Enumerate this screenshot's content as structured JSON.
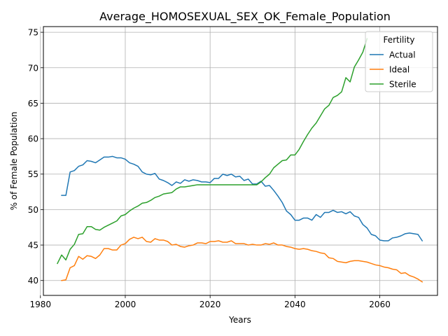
{
  "chart_data": {
    "type": "line",
    "title": "Average_HOMOSEXUAL_SEX_OK_Female_Population",
    "xlabel": "Years",
    "ylabel": "% of Female Population",
    "xlim": [
      1980.7,
      2073.6
    ],
    "ylim": [
      37.9,
      75.8
    ],
    "xticks": [
      1980,
      2000,
      2020,
      2040,
      2060
    ],
    "yticks": [
      40,
      45,
      50,
      55,
      60,
      65,
      70,
      75
    ],
    "grid": true,
    "legend": {
      "title": "Fertility",
      "placement": "top-right"
    },
    "series": [
      {
        "name": "Actual",
        "color": "#1f77b4",
        "points": [
          [
            1985,
            52.0
          ],
          [
            1986,
            52.0
          ],
          [
            1987,
            55.3
          ],
          [
            1988,
            55.5
          ],
          [
            1989,
            56.1
          ],
          [
            1990,
            56.3
          ],
          [
            1991,
            56.9
          ],
          [
            1992,
            56.8
          ],
          [
            1993,
            56.6
          ],
          [
            1994,
            57.0
          ],
          [
            1995,
            57.4
          ],
          [
            1996,
            57.4
          ],
          [
            1997,
            57.5
          ],
          [
            1998,
            57.3
          ],
          [
            1999,
            57.3
          ],
          [
            2000,
            57.1
          ],
          [
            2001,
            56.6
          ],
          [
            2002,
            56.4
          ],
          [
            2003,
            56.1
          ],
          [
            2004,
            55.3
          ],
          [
            2005,
            55.0
          ],
          [
            2006,
            54.9
          ],
          [
            2007,
            55.1
          ],
          [
            2008,
            54.3
          ],
          [
            2009,
            54.1
          ],
          [
            2010,
            53.8
          ],
          [
            2011,
            53.4
          ],
          [
            2012,
            53.9
          ],
          [
            2013,
            53.7
          ],
          [
            2014,
            54.2
          ],
          [
            2015,
            54.0
          ],
          [
            2016,
            54.2
          ],
          [
            2017,
            54.1
          ],
          [
            2018,
            53.9
          ],
          [
            2019,
            53.9
          ],
          [
            2020,
            53.8
          ],
          [
            2021,
            54.4
          ],
          [
            2022,
            54.4
          ],
          [
            2023,
            55.0
          ],
          [
            2024,
            54.8
          ],
          [
            2025,
            55.0
          ],
          [
            2026,
            54.6
          ],
          [
            2027,
            54.7
          ],
          [
            2028,
            54.1
          ],
          [
            2029,
            54.3
          ],
          [
            2030,
            53.6
          ],
          [
            2031,
            53.6
          ],
          [
            2032,
            54.0
          ],
          [
            2033,
            53.3
          ],
          [
            2034,
            53.4
          ],
          [
            2035,
            52.7
          ],
          [
            2036,
            51.9
          ],
          [
            2037,
            51.0
          ],
          [
            2038,
            49.8
          ],
          [
            2039,
            49.3
          ],
          [
            2040,
            48.5
          ],
          [
            2041,
            48.5
          ],
          [
            2042,
            48.8
          ],
          [
            2043,
            48.8
          ],
          [
            2044,
            48.5
          ],
          [
            2045,
            49.3
          ],
          [
            2046,
            48.9
          ],
          [
            2047,
            49.6
          ],
          [
            2048,
            49.6
          ],
          [
            2049,
            49.9
          ],
          [
            2050,
            49.6
          ],
          [
            2051,
            49.7
          ],
          [
            2052,
            49.4
          ],
          [
            2053,
            49.7
          ],
          [
            2054,
            49.1
          ],
          [
            2055,
            48.9
          ],
          [
            2056,
            47.9
          ],
          [
            2057,
            47.4
          ],
          [
            2058,
            46.5
          ],
          [
            2059,
            46.3
          ],
          [
            2060,
            45.7
          ],
          [
            2061,
            45.6
          ],
          [
            2062,
            45.6
          ],
          [
            2063,
            46.0
          ],
          [
            2064,
            46.1
          ],
          [
            2065,
            46.3
          ],
          [
            2066,
            46.6
          ],
          [
            2067,
            46.7
          ],
          [
            2068,
            46.6
          ],
          [
            2069,
            46.5
          ],
          [
            2070,
            45.6
          ]
        ]
      },
      {
        "name": "Ideal",
        "color": "#ff7f0e",
        "points": [
          [
            1985,
            40.0
          ],
          [
            1986,
            40.1
          ],
          [
            1987,
            41.8
          ],
          [
            1988,
            42.1
          ],
          [
            1989,
            43.4
          ],
          [
            1990,
            43.0
          ],
          [
            1991,
            43.5
          ],
          [
            1992,
            43.4
          ],
          [
            1993,
            43.1
          ],
          [
            1994,
            43.6
          ],
          [
            1995,
            44.5
          ],
          [
            1996,
            44.5
          ],
          [
            1997,
            44.3
          ],
          [
            1998,
            44.3
          ],
          [
            1999,
            45.0
          ],
          [
            2000,
            45.2
          ],
          [
            2001,
            45.8
          ],
          [
            2002,
            46.1
          ],
          [
            2003,
            45.9
          ],
          [
            2004,
            46.1
          ],
          [
            2005,
            45.5
          ],
          [
            2006,
            45.4
          ],
          [
            2007,
            45.9
          ],
          [
            2008,
            45.7
          ],
          [
            2009,
            45.7
          ],
          [
            2010,
            45.5
          ],
          [
            2011,
            45.0
          ],
          [
            2012,
            45.1
          ],
          [
            2013,
            44.8
          ],
          [
            2014,
            44.7
          ],
          [
            2015,
            44.9
          ],
          [
            2016,
            45.0
          ],
          [
            2017,
            45.3
          ],
          [
            2018,
            45.3
          ],
          [
            2019,
            45.2
          ],
          [
            2020,
            45.5
          ],
          [
            2021,
            45.5
          ],
          [
            2022,
            45.6
          ],
          [
            2023,
            45.4
          ],
          [
            2024,
            45.4
          ],
          [
            2025,
            45.6
          ],
          [
            2026,
            45.2
          ],
          [
            2027,
            45.2
          ],
          [
            2028,
            45.2
          ],
          [
            2029,
            45.0
          ],
          [
            2030,
            45.1
          ],
          [
            2031,
            45.0
          ],
          [
            2032,
            45.0
          ],
          [
            2033,
            45.2
          ],
          [
            2034,
            45.1
          ],
          [
            2035,
            45.3
          ],
          [
            2036,
            45.0
          ],
          [
            2037,
            45.0
          ],
          [
            2038,
            44.8
          ],
          [
            2039,
            44.7
          ],
          [
            2040,
            44.5
          ],
          [
            2041,
            44.4
          ],
          [
            2042,
            44.5
          ],
          [
            2043,
            44.4
          ],
          [
            2044,
            44.2
          ],
          [
            2045,
            44.1
          ],
          [
            2046,
            43.9
          ],
          [
            2047,
            43.8
          ],
          [
            2048,
            43.2
          ],
          [
            2049,
            43.1
          ],
          [
            2050,
            42.7
          ],
          [
            2051,
            42.6
          ],
          [
            2052,
            42.5
          ],
          [
            2053,
            42.7
          ],
          [
            2054,
            42.8
          ],
          [
            2055,
            42.8
          ],
          [
            2056,
            42.7
          ],
          [
            2057,
            42.6
          ],
          [
            2058,
            42.4
          ],
          [
            2059,
            42.2
          ],
          [
            2060,
            42.1
          ],
          [
            2061,
            41.9
          ],
          [
            2062,
            41.8
          ],
          [
            2063,
            41.6
          ],
          [
            2064,
            41.5
          ],
          [
            2065,
            41.0
          ],
          [
            2066,
            41.1
          ],
          [
            2067,
            40.7
          ],
          [
            2068,
            40.5
          ],
          [
            2069,
            40.2
          ],
          [
            2070,
            39.8
          ]
        ]
      },
      {
        "name": "Sterile",
        "color": "#2ca02c",
        "points": [
          [
            1984,
            42.4
          ],
          [
            1985,
            43.6
          ],
          [
            1986,
            42.9
          ],
          [
            1987,
            44.4
          ],
          [
            1988,
            45.1
          ],
          [
            1989,
            46.5
          ],
          [
            1990,
            46.6
          ],
          [
            1991,
            47.6
          ],
          [
            1992,
            47.6
          ],
          [
            1993,
            47.2
          ],
          [
            1994,
            47.1
          ],
          [
            1995,
            47.5
          ],
          [
            1996,
            47.8
          ],
          [
            1997,
            48.1
          ],
          [
            1998,
            48.4
          ],
          [
            1999,
            49.1
          ],
          [
            2000,
            49.3
          ],
          [
            2001,
            49.8
          ],
          [
            2002,
            50.2
          ],
          [
            2003,
            50.5
          ],
          [
            2004,
            50.9
          ],
          [
            2005,
            51.0
          ],
          [
            2006,
            51.3
          ],
          [
            2007,
            51.7
          ],
          [
            2008,
            51.9
          ],
          [
            2009,
            52.2
          ],
          [
            2010,
            52.3
          ],
          [
            2011,
            52.4
          ],
          [
            2012,
            52.9
          ],
          [
            2013,
            53.2
          ],
          [
            2014,
            53.2
          ],
          [
            2015,
            53.3
          ],
          [
            2016,
            53.4
          ],
          [
            2017,
            53.5
          ],
          [
            2018,
            53.5
          ],
          [
            2019,
            53.5
          ],
          [
            2020,
            53.5
          ],
          [
            2021,
            53.5
          ],
          [
            2022,
            53.5
          ],
          [
            2023,
            53.5
          ],
          [
            2024,
            53.5
          ],
          [
            2025,
            53.5
          ],
          [
            2026,
            53.5
          ],
          [
            2027,
            53.5
          ],
          [
            2028,
            53.5
          ],
          [
            2029,
            53.5
          ],
          [
            2030,
            53.5
          ],
          [
            2031,
            53.5
          ],
          [
            2032,
            53.9
          ],
          [
            2033,
            54.5
          ],
          [
            2034,
            55.0
          ],
          [
            2035,
            55.9
          ],
          [
            2036,
            56.4
          ],
          [
            2037,
            56.9
          ],
          [
            2038,
            57.0
          ],
          [
            2039,
            57.7
          ],
          [
            2040,
            57.7
          ],
          [
            2041,
            58.5
          ],
          [
            2042,
            59.6
          ],
          [
            2043,
            60.6
          ],
          [
            2044,
            61.5
          ],
          [
            2045,
            62.2
          ],
          [
            2046,
            63.2
          ],
          [
            2047,
            64.2
          ],
          [
            2048,
            64.7
          ],
          [
            2049,
            65.8
          ],
          [
            2050,
            66.1
          ],
          [
            2051,
            66.6
          ],
          [
            2052,
            68.6
          ],
          [
            2053,
            68.0
          ],
          [
            2054,
            70.1
          ],
          [
            2055,
            71.1
          ],
          [
            2056,
            72.2
          ],
          [
            2057,
            74.1
          ]
        ]
      }
    ]
  }
}
